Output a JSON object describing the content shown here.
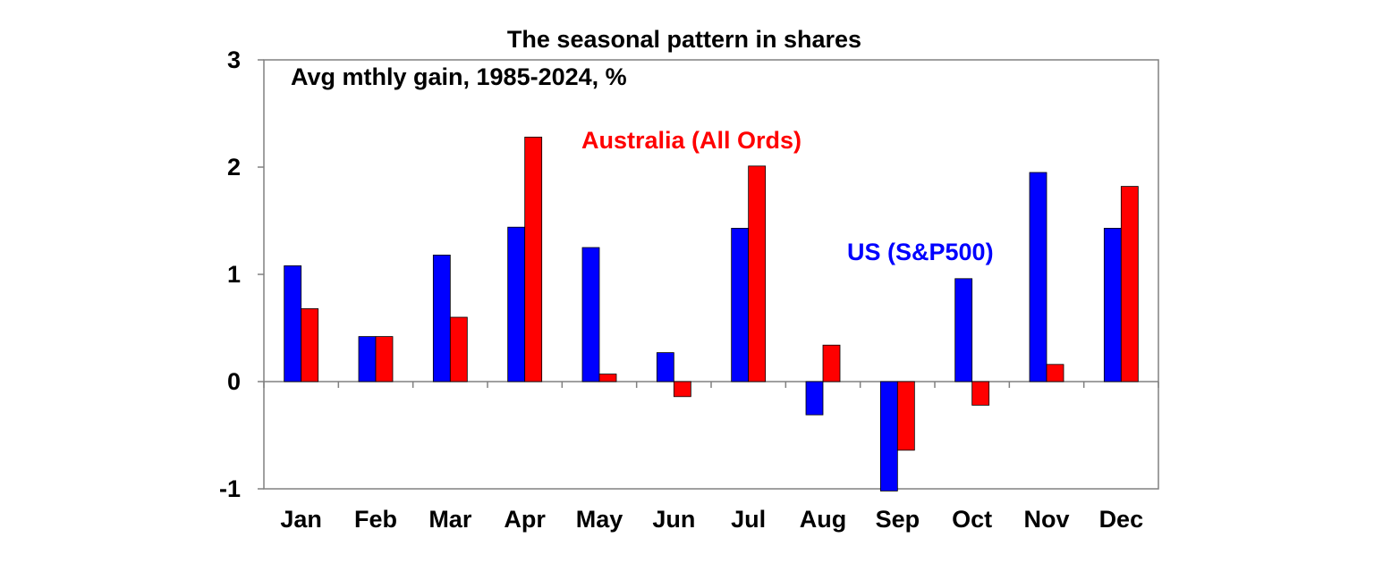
{
  "chart_data": {
    "type": "bar",
    "title": "The seasonal pattern in shares",
    "subtitle": "Avg mthly gain, 1985-2024, %",
    "categories": [
      "Jan",
      "Feb",
      "Mar",
      "Apr",
      "May",
      "Jun",
      "Jul",
      "Aug",
      "Sep",
      "Oct",
      "Nov",
      "Dec"
    ],
    "series": [
      {
        "name": "US (S&P500)",
        "color": "#0000ff",
        "values": [
          1.08,
          0.42,
          1.18,
          1.44,
          1.25,
          0.27,
          1.43,
          -0.31,
          -1.02,
          0.96,
          1.95,
          1.43
        ]
      },
      {
        "name": "Australia (All Ords)",
        "color": "#ff0000",
        "values": [
          0.68,
          0.42,
          0.6,
          2.28,
          0.07,
          -0.14,
          2.01,
          0.34,
          -0.64,
          -0.22,
          0.16,
          1.82
        ]
      }
    ],
    "ylim": [
      -1,
      3
    ],
    "yticks": [
      "3",
      "2",
      "1",
      "0",
      "-1"
    ],
    "ytick_values": [
      3,
      2,
      1,
      0,
      -1
    ],
    "xlabel": "",
    "ylabel": "",
    "grid": false,
    "legend": "inline labels"
  }
}
